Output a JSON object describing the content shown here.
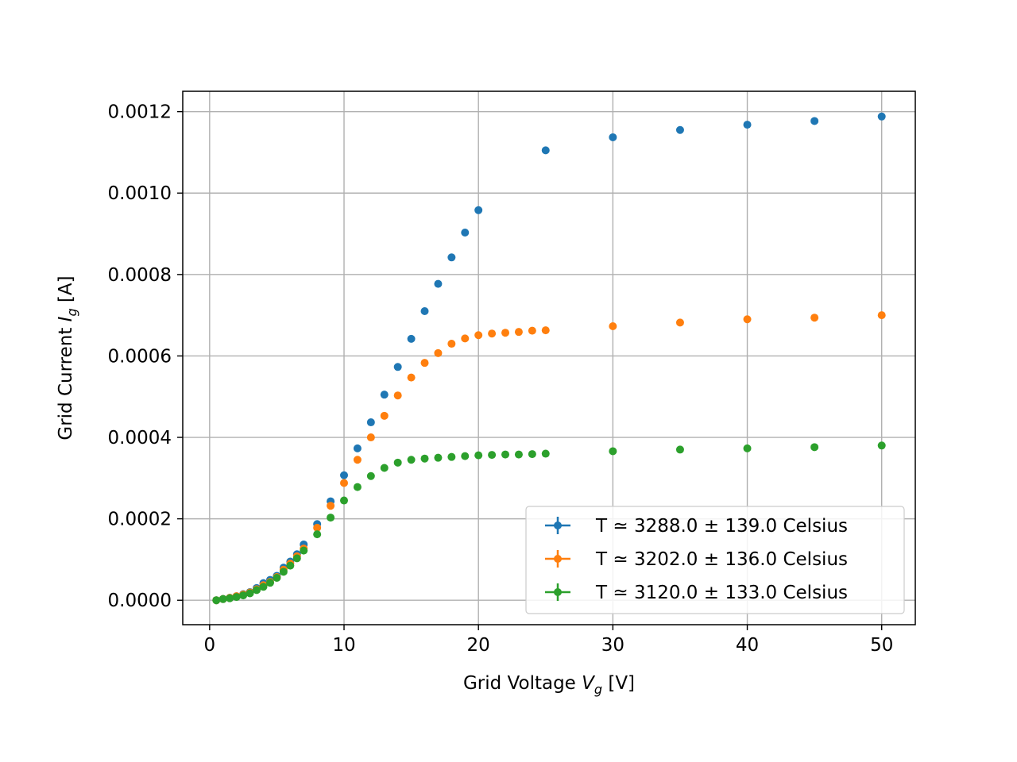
{
  "chart_data": {
    "type": "scatter",
    "title": "",
    "xlabel": {
      "prefix": "Grid Voltage ",
      "symbol": "V",
      "subscript": "g",
      "suffix": " [V]"
    },
    "ylabel": {
      "prefix": "Grid Current ",
      "symbol": "I",
      "subscript": "g",
      "suffix": " [A]"
    },
    "xlim": [
      -2,
      52.5
    ],
    "ylim": [
      -6e-05,
      0.00125
    ],
    "xticks": [
      0,
      10,
      20,
      30,
      40,
      50
    ],
    "xtick_labels": [
      "0",
      "10",
      "20",
      "30",
      "40",
      "50"
    ],
    "yticks": [
      0,
      0.0002,
      0.0004,
      0.0006,
      0.0008,
      0.001,
      0.0012
    ],
    "ytick_labels": [
      "0.0000",
      "0.0002",
      "0.0004",
      "0.0006",
      "0.0008",
      "0.0010",
      "0.0012"
    ],
    "grid": true,
    "legend_position": "lower-right",
    "series": [
      {
        "name": "T ≃ 3288.0 ± 139.0 Celsius",
        "color": "#1f77b4",
        "x": [
          0.5,
          1,
          1.5,
          2,
          2.5,
          3,
          3.5,
          4,
          4.5,
          5,
          5.5,
          6,
          6.5,
          7,
          8,
          9,
          10,
          11,
          12,
          13,
          14,
          15,
          16,
          17,
          18,
          19,
          20,
          25,
          30,
          35,
          40,
          45,
          50
        ],
        "y": [
          0.0,
          3e-06,
          6e-06,
          1e-05,
          1.5e-05,
          2e-05,
          3e-05,
          4.2e-05,
          5e-05,
          6e-05,
          8e-05,
          9.5e-05,
          0.000113,
          0.000137,
          0.000187,
          0.000243,
          0.000307,
          0.000373,
          0.000437,
          0.000505,
          0.000573,
          0.000642,
          0.00071,
          0.000777,
          0.000842,
          0.000903,
          0.000958,
          0.001105,
          0.001137,
          0.001155,
          0.001168,
          0.001177,
          0.001188
        ]
      },
      {
        "name": "T ≃ 3202.0 ± 136.0 Celsius",
        "color": "#ff7f0e",
        "x": [
          0.5,
          1,
          1.5,
          2,
          2.5,
          3,
          3.5,
          4,
          4.5,
          5,
          5.5,
          6,
          6.5,
          7,
          8,
          9,
          10,
          11,
          12,
          13,
          14,
          15,
          16,
          17,
          18,
          19,
          20,
          21,
          22,
          23,
          24,
          25,
          30,
          35,
          40,
          45,
          50
        ],
        "y": [
          0.0,
          3e-06,
          6e-06,
          1e-05,
          1.4e-05,
          1.9e-05,
          2.7e-05,
          3.7e-05,
          4.5e-05,
          5.7e-05,
          7.5e-05,
          9e-05,
          0.000108,
          0.000127,
          0.000178,
          0.000232,
          0.000288,
          0.000345,
          0.0004,
          0.000453,
          0.000503,
          0.000547,
          0.000583,
          0.000607,
          0.00063,
          0.000643,
          0.000651,
          0.000655,
          0.000657,
          0.000659,
          0.000662,
          0.000663,
          0.000673,
          0.000682,
          0.00069,
          0.000694,
          0.0007
        ]
      },
      {
        "name": "T ≃ 3120.0 ± 133.0 Celsius",
        "color": "#2ca02c",
        "x": [
          0.5,
          1,
          1.5,
          2,
          2.5,
          3,
          3.5,
          4,
          4.5,
          5,
          5.5,
          6,
          6.5,
          7,
          8,
          9,
          10,
          11,
          12,
          13,
          14,
          15,
          16,
          17,
          18,
          19,
          20,
          21,
          22,
          23,
          24,
          25,
          30,
          35,
          40,
          45,
          50
        ],
        "y": [
          0.0,
          3e-06,
          5e-06,
          8e-06,
          1.2e-05,
          1.7e-05,
          2.5e-05,
          3.3e-05,
          4.3e-05,
          5.5e-05,
          7e-05,
          8.5e-05,
          0.000103,
          0.000122,
          0.000162,
          0.000203,
          0.000245,
          0.000278,
          0.000305,
          0.000325,
          0.000338,
          0.000345,
          0.000348,
          0.00035,
          0.000352,
          0.000354,
          0.000356,
          0.000357,
          0.000358,
          0.000358,
          0.000359,
          0.00036,
          0.000366,
          0.00037,
          0.000373,
          0.000376,
          0.00038
        ]
      }
    ]
  }
}
